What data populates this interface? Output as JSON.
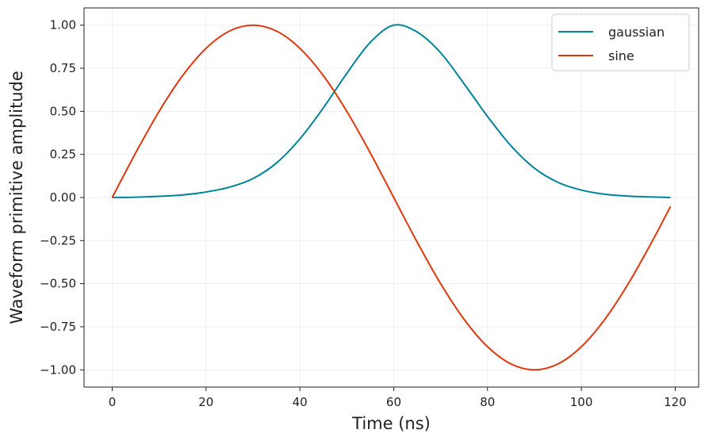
{
  "chart_data": {
    "type": "line",
    "xlabel": "Time (ns)",
    "ylabel": "Waveform primitive amplitude",
    "xlim": [
      -6,
      125
    ],
    "ylim": [
      -1.1,
      1.1
    ],
    "xticks": [
      0,
      20,
      40,
      60,
      80,
      100,
      120
    ],
    "yticks": [
      1.0,
      0.75,
      0.5,
      0.25,
      0.0,
      -0.25,
      -0.5,
      -0.75,
      -1.0
    ],
    "xtick_labels": [
      "0",
      "20",
      "40",
      "60",
      "80",
      "100",
      "120"
    ],
    "ytick_labels": [
      "1.00",
      "0.75",
      "0.50",
      "0.25",
      "0.00",
      "−0.25",
      "−0.50",
      "−0.75",
      "−1.00"
    ],
    "grid": true,
    "legend_position": "top-right",
    "series": [
      {
        "name": "gaussian",
        "color": "#00839a",
        "x": [
          0,
          5,
          10,
          15,
          20,
          25,
          30,
          35,
          40,
          45,
          50,
          55,
          60,
          65,
          70,
          75,
          80,
          85,
          90,
          95,
          100,
          105,
          110,
          115,
          119
        ],
        "y": [
          0.0,
          0.002,
          0.007,
          0.015,
          0.032,
          0.06,
          0.11,
          0.2,
          0.34,
          0.52,
          0.72,
          0.9,
          1.0,
          0.96,
          0.84,
          0.66,
          0.47,
          0.3,
          0.17,
          0.088,
          0.043,
          0.019,
          0.008,
          0.003,
          0.0
        ]
      },
      {
        "name": "sine",
        "color": "#e0380b",
        "x": [
          0,
          5,
          10,
          15,
          20,
          25,
          30,
          35,
          40,
          45,
          50,
          55,
          60,
          65,
          70,
          75,
          80,
          85,
          90,
          95,
          100,
          105,
          110,
          115,
          119
        ],
        "y": [
          0.0,
          0.259,
          0.5,
          0.707,
          0.866,
          0.966,
          1.0,
          0.966,
          0.866,
          0.707,
          0.5,
          0.259,
          0.0,
          -0.259,
          -0.5,
          -0.707,
          -0.866,
          -0.966,
          -1.0,
          -0.966,
          -0.866,
          -0.707,
          -0.5,
          -0.259,
          -0.052
        ]
      }
    ]
  }
}
